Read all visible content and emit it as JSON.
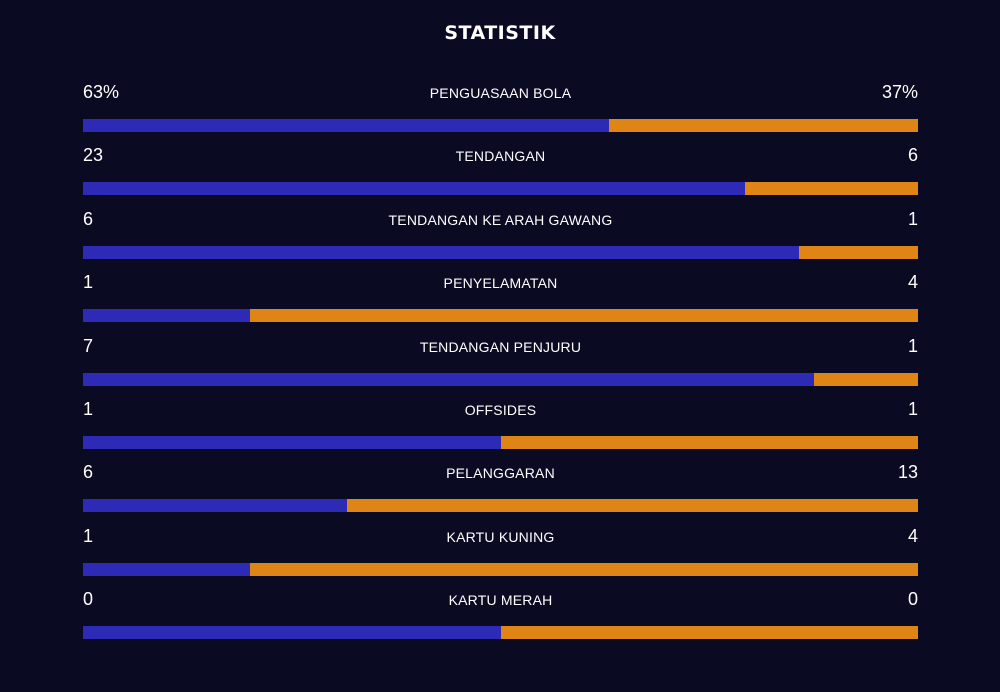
{
  "title": "STATISTIK",
  "colors": {
    "background": "#0a0a22",
    "home": "#2d2ab6",
    "away": "#df8516"
  },
  "stats": [
    {
      "label": "PENGUASAAN BOLA",
      "home": "63%",
      "away": "37%",
      "home_share": 0.63
    },
    {
      "label": "TENDANGAN",
      "home": "23",
      "away": "6",
      "home_share": 0.7931
    },
    {
      "label": "TENDANGAN KE ARAH GAWANG",
      "home": "6",
      "away": "1",
      "home_share": 0.8571
    },
    {
      "label": "PENYELAMATAN",
      "home": "1",
      "away": "4",
      "home_share": 0.2
    },
    {
      "label": "TENDANGAN PENJURU",
      "home": "7",
      "away": "1",
      "home_share": 0.875
    },
    {
      "label": "OFFSIDES",
      "home": "1",
      "away": "1",
      "home_share": 0.5
    },
    {
      "label": "PELANGGARAN",
      "home": "6",
      "away": "13",
      "home_share": 0.3158
    },
    {
      "label": "KARTU KUNING",
      "home": "1",
      "away": "4",
      "home_share": 0.2
    },
    {
      "label": "KARTU MERAH",
      "home": "0",
      "away": "0",
      "home_share": 0.5
    }
  ]
}
